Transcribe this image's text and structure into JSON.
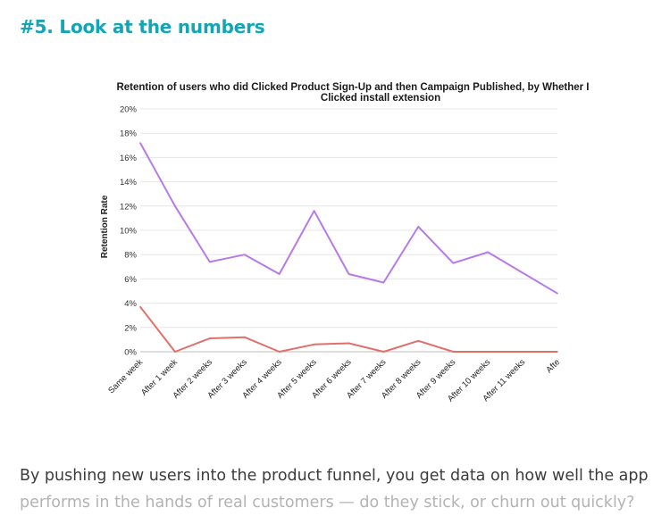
{
  "heading": "#5. Look at the numbers",
  "paragraph": {
    "line1": "By pushing new users into the product funnel, you get data on how well the app",
    "line2": "performs in the hands of real customers — do they stick, or churn out quickly?"
  },
  "chart_data": {
    "type": "line",
    "title_line1": "Retention of users who did Clicked Product Sign-Up and then Campaign Published, by Whether I",
    "title_line2": "Clicked install extension",
    "ylabel": "Retention Rate",
    "xlabel": "",
    "y_ticks": [
      "20%",
      "18%",
      "16%",
      "14%",
      "12%",
      "10%",
      "8%",
      "6%",
      "4%",
      "2%",
      "0%"
    ],
    "ylim": [
      0,
      20
    ],
    "grid": true,
    "categories": [
      "Same week",
      "After 1 week",
      "After 2 weeks",
      "After 3 weeks",
      "After 4 weeks",
      "After 5 weeks",
      "After 6 weeks",
      "After 7 weeks",
      "After 8 weeks",
      "After 9 weeks",
      "After 10 weeks",
      "After 11 weeks",
      "Afte"
    ],
    "series": [
      {
        "color": "#b57bea",
        "values": [
          17.2,
          12.0,
          7.4,
          8.0,
          6.4,
          11.6,
          6.4,
          5.7,
          10.3,
          7.3,
          8.2,
          6.5,
          4.8
        ]
      },
      {
        "color": "#e0706a",
        "values": [
          3.7,
          0.0,
          1.1,
          1.2,
          0.0,
          0.6,
          0.7,
          0.0,
          0.9,
          0.0,
          0.0,
          0.0,
          0.0
        ]
      }
    ]
  }
}
